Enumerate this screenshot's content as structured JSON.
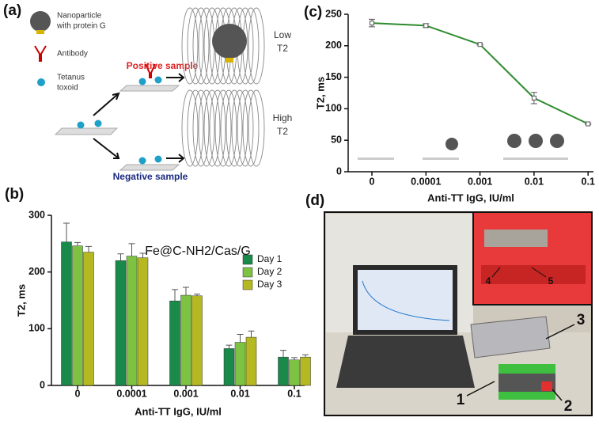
{
  "panel_labels": [
    "(a)",
    "(b)",
    "(c)",
    "(d)"
  ],
  "diagram": {
    "legend": [
      [
        "Nanoparticle",
        "with protein G"
      ],
      [
        "Antibody"
      ],
      [
        "Tetanus",
        "toxoid"
      ]
    ],
    "positive": "Positive sample",
    "negative": "Negative sample",
    "low": [
      "Low",
      "T2"
    ],
    "high": [
      "High",
      "T2"
    ]
  },
  "chart_data": [
    {
      "type": "bar",
      "title": "Fe@C-NH2/Cas/G",
      "categories": [
        "0",
        "0.0001",
        "0.001",
        "0.01",
        "0.1"
      ],
      "series": [
        {
          "name": "Day 1",
          "color": "#1a8a4a",
          "values": [
            253,
            220,
            149,
            65,
            50
          ],
          "errors": [
            33,
            12,
            20,
            6,
            12
          ]
        },
        {
          "name": "Day 2",
          "color": "#7dc242",
          "values": [
            246,
            228,
            159,
            76,
            45
          ],
          "errors": [
            6,
            22,
            14,
            14,
            4
          ]
        },
        {
          "name": "Day 3",
          "color": "#b5b821",
          "values": [
            235,
            225,
            158,
            85,
            50
          ],
          "errors": [
            10,
            8,
            3,
            11,
            4
          ]
        }
      ],
      "ylim": [
        0,
        300
      ],
      "yticks": [
        0,
        100,
        200,
        300
      ],
      "ylabel": "T2, ms",
      "xlabel": "Anti-TT IgG, IU/ml"
    },
    {
      "type": "line",
      "categories": [
        "0",
        "0.0001",
        "0.001",
        "0.01",
        "0.1"
      ],
      "series": [
        {
          "color": "#2e8b2e",
          "values": [
            236,
            232,
            202,
            117,
            76
          ],
          "errors": [
            6,
            3,
            1,
            9,
            1
          ]
        }
      ],
      "ylim": [
        0,
        250
      ],
      "yticks": [
        0,
        50,
        100,
        150,
        200,
        250
      ],
      "ylabel": "T2, ms",
      "xlabel": "Anti-TT IgG, IU/ml"
    }
  ],
  "photo": {
    "labels": [
      "1",
      "2",
      "3",
      "4",
      "5"
    ]
  }
}
